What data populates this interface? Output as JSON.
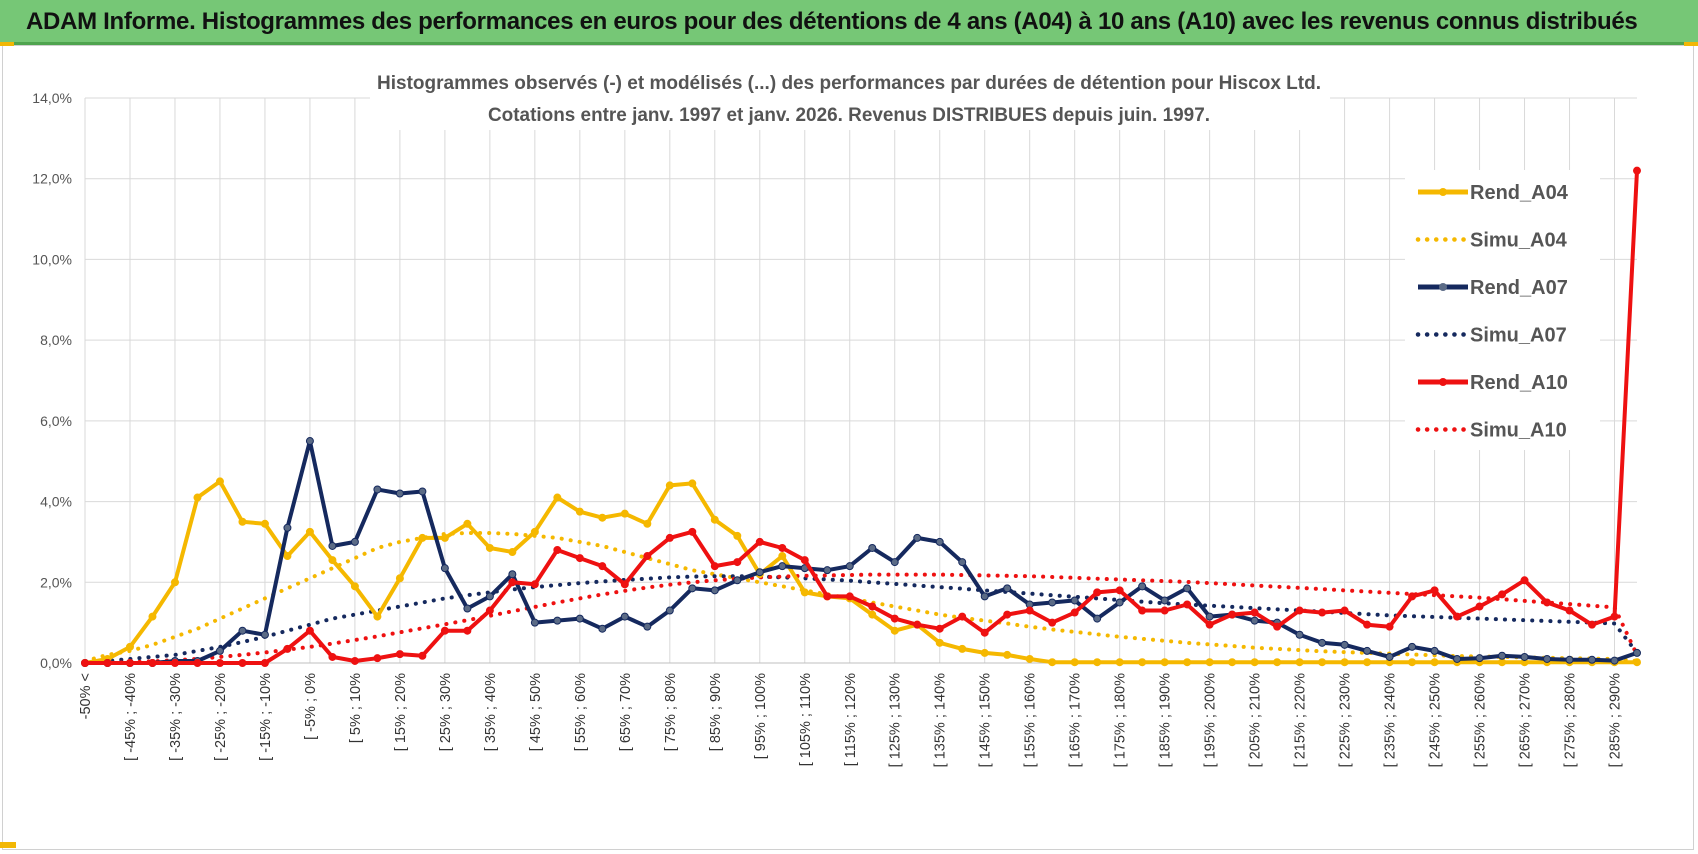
{
  "banner": {
    "title": "ADAM Informe. Histogrammes des performances en euros pour des détentions de 4 ans (A04) à 10 ans (A10) avec les revenus connus distribués"
  },
  "chart_data": {
    "type": "line",
    "title": "Histogrammes observés (-) et modélisés (...) des performances par durées de détention pour Hiscox Ltd.",
    "subtitle": "Cotations entre janv. 1997 et janv. 2026. Revenus DISTRIBUES depuis juin. 1997.",
    "xlabel": "",
    "ylabel": "",
    "ylim": [
      0,
      14
    ],
    "y_ticks": [
      "0,0%",
      "2,0%",
      "4,0%",
      "6,0%",
      "8,0%",
      "10,0%",
      "12,0%",
      "14,0%"
    ],
    "x_tick_labels": [
      "-50% <",
      "[ -45% ; -40%",
      "[ -35% ; -30%",
      "[ -25% ; -20%",
      "[ -15% ; -10%",
      "[ -5% ; 0%",
      "[ 5% ; 10%",
      "[ 15% ; 20%",
      "[ 25% ; 30%",
      "[ 35% ; 40%",
      "[ 45% ; 50%",
      "[ 55% ; 60%",
      "[ 65% ; 70%",
      "[ 75% ; 80%",
      "[ 85% ; 90%",
      "[ 95% ; 100%",
      "[ 105% ; 110%",
      "[ 115% ; 120%",
      "[ 125% ; 130%",
      "[ 135% ; 140%",
      "[ 145% ; 150%",
      "[ 155% ; 160%",
      "[ 165% ; 170%",
      "[ 175% ; 180%",
      "[ 185% ; 190%",
      "[ 195% ; 200%",
      "[ 205% ; 210%",
      "[ 215% ; 220%",
      "[ 225% ; 230%",
      "[ 235% ; 240%",
      "[ 245% ; 250%",
      "[ 255% ; 260%",
      "[ 265% ; 270%",
      "[ 275% ; 280%",
      "[ 285% ; 290%"
    ],
    "grid": true,
    "legend_position": "right",
    "series": [
      {
        "name": "Rend_A04",
        "color": "#f5b800",
        "style": "solid",
        "markers": true,
        "values": [
          0.0,
          0.1,
          0.4,
          1.15,
          2.0,
          4.1,
          4.5,
          3.5,
          3.45,
          2.65,
          3.25,
          2.55,
          1.9,
          1.15,
          2.1,
          3.1,
          3.1,
          3.45,
          2.85,
          2.75,
          3.25,
          4.1,
          3.75,
          3.6,
          3.7,
          3.45,
          4.4,
          4.45,
          3.55,
          3.15,
          2.2,
          2.65,
          1.75,
          1.65,
          1.6,
          1.2,
          0.8,
          0.95,
          0.5,
          0.35,
          0.25,
          0.2,
          0.1,
          0.02,
          0.02,
          0.02,
          0.02,
          0.02,
          0.02,
          0.02,
          0.02,
          0.02,
          0.02,
          0.02,
          0.02,
          0.02,
          0.02,
          0.02,
          0.02,
          0.02,
          0.02,
          0.02,
          0.02,
          0.02,
          0.02,
          0.02,
          0.02,
          0.02,
          0.02,
          0.02
        ]
      },
      {
        "name": "Simu_A04",
        "color": "#f5b800",
        "style": "dotted",
        "markers": false,
        "values": [
          0.05,
          0.2,
          0.3,
          0.45,
          0.65,
          0.85,
          1.1,
          1.35,
          1.6,
          1.85,
          2.1,
          2.35,
          2.6,
          2.85,
          3.0,
          3.1,
          3.2,
          3.22,
          3.22,
          3.2,
          3.15,
          3.1,
          3.0,
          2.9,
          2.75,
          2.6,
          2.45,
          2.3,
          2.2,
          2.1,
          2.0,
          1.9,
          1.8,
          1.7,
          1.6,
          1.5,
          1.4,
          1.3,
          1.2,
          1.12,
          1.05,
          0.98,
          0.9,
          0.83,
          0.77,
          0.71,
          0.65,
          0.6,
          0.55,
          0.5,
          0.46,
          0.42,
          0.38,
          0.35,
          0.32,
          0.29,
          0.27,
          0.25,
          0.23,
          0.21,
          0.19,
          0.17,
          0.16,
          0.15,
          0.14,
          0.13,
          0.12,
          0.11,
          0.1,
          0.05
        ]
      },
      {
        "name": "Rend_A07",
        "color": "#15295e",
        "style": "solid",
        "markers": true,
        "values": [
          0.0,
          0.0,
          0.0,
          0.0,
          0.05,
          0.05,
          0.3,
          0.8,
          0.7,
          3.35,
          5.5,
          2.9,
          3.0,
          4.3,
          4.2,
          4.25,
          2.35,
          1.35,
          1.65,
          2.2,
          1.0,
          1.05,
          1.1,
          0.85,
          1.15,
          0.9,
          1.3,
          1.85,
          1.8,
          2.05,
          2.25,
          2.4,
          2.35,
          2.3,
          2.4,
          2.85,
          2.5,
          3.1,
          3.0,
          2.5,
          1.65,
          1.85,
          1.45,
          1.5,
          1.55,
          1.1,
          1.5,
          1.9,
          1.55,
          1.85,
          1.15,
          1.2,
          1.05,
          1.0,
          0.7,
          0.5,
          0.45,
          0.3,
          0.15,
          0.4,
          0.3,
          0.1,
          0.12,
          0.18,
          0.15,
          0.1,
          0.08,
          0.08,
          0.06,
          0.25
        ]
      },
      {
        "name": "Simu_A07",
        "color": "#15295e",
        "style": "dotted",
        "markers": false,
        "values": [
          0.0,
          0.05,
          0.1,
          0.15,
          0.2,
          0.3,
          0.4,
          0.52,
          0.65,
          0.8,
          0.95,
          1.1,
          1.2,
          1.3,
          1.4,
          1.5,
          1.6,
          1.68,
          1.75,
          1.82,
          1.88,
          1.93,
          1.98,
          2.02,
          2.06,
          2.09,
          2.12,
          2.14,
          2.15,
          2.15,
          2.14,
          2.12,
          2.1,
          2.07,
          2.04,
          2.0,
          1.96,
          1.92,
          1.88,
          1.84,
          1.8,
          1.76,
          1.72,
          1.68,
          1.64,
          1.6,
          1.56,
          1.52,
          1.48,
          1.45,
          1.42,
          1.39,
          1.36,
          1.33,
          1.3,
          1.27,
          1.24,
          1.21,
          1.18,
          1.16,
          1.14,
          1.12,
          1.1,
          1.08,
          1.06,
          1.04,
          1.02,
          1.0,
          0.98,
          0.25
        ]
      },
      {
        "name": "Rend_A10",
        "color": "#ee1111",
        "style": "solid",
        "markers": true,
        "values": [
          0.0,
          0.0,
          0.0,
          0.0,
          0.0,
          0.0,
          0.0,
          0.0,
          0.0,
          0.35,
          0.8,
          0.15,
          0.05,
          0.12,
          0.22,
          0.18,
          0.8,
          0.8,
          1.3,
          2.0,
          1.95,
          2.8,
          2.6,
          2.4,
          1.95,
          2.65,
          3.1,
          3.25,
          2.4,
          2.5,
          3.0,
          2.85,
          2.55,
          1.65,
          1.65,
          1.4,
          1.1,
          0.95,
          0.85,
          1.15,
          0.75,
          1.2,
          1.3,
          1.0,
          1.25,
          1.75,
          1.8,
          1.3,
          1.3,
          1.45,
          0.95,
          1.2,
          1.25,
          0.9,
          1.3,
          1.25,
          1.3,
          0.95,
          0.9,
          1.65,
          1.8,
          1.15,
          1.4,
          1.7,
          2.05,
          1.5,
          1.3,
          0.95,
          1.15,
          12.2
        ]
      },
      {
        "name": "Simu_A10",
        "color": "#ee1111",
        "style": "dotted",
        "markers": false,
        "values": [
          0.0,
          0.0,
          0.02,
          0.04,
          0.07,
          0.1,
          0.15,
          0.2,
          0.26,
          0.33,
          0.4,
          0.48,
          0.57,
          0.66,
          0.76,
          0.86,
          0.96,
          1.06,
          1.17,
          1.28,
          1.39,
          1.5,
          1.6,
          1.7,
          1.79,
          1.87,
          1.94,
          2.0,
          2.05,
          2.09,
          2.12,
          2.14,
          2.16,
          2.17,
          2.18,
          2.19,
          2.19,
          2.19,
          2.19,
          2.18,
          2.17,
          2.16,
          2.15,
          2.13,
          2.11,
          2.09,
          2.07,
          2.05,
          2.03,
          2.01,
          1.98,
          1.95,
          1.92,
          1.89,
          1.86,
          1.83,
          1.8,
          1.77,
          1.74,
          1.71,
          1.68,
          1.65,
          1.62,
          1.58,
          1.54,
          1.5,
          1.46,
          1.42,
          1.38,
          0.2
        ]
      }
    ]
  }
}
